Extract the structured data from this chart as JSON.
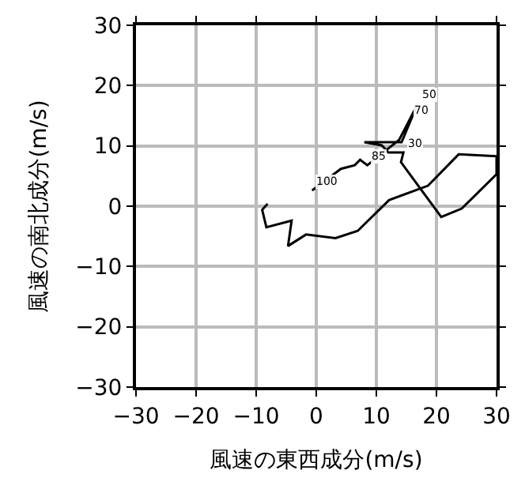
{
  "chart_data": {
    "type": "line",
    "xlabel": "風速の東西成分(m/s)",
    "ylabel": "風速の南北成分(m/s)",
    "xlim": [
      -30,
      30
    ],
    "ylim": [
      -30,
      30
    ],
    "xticks": [
      -30,
      -20,
      -10,
      0,
      10,
      20,
      30
    ],
    "yticks": [
      -30,
      -20,
      -10,
      0,
      10,
      20,
      30
    ],
    "grid": true,
    "legend": false,
    "marker": "none",
    "line_style": "solid",
    "series": [
      {
        "color": "#000000",
        "x": [
          -8.1,
          -9,
          -8.3,
          -4.1,
          -4.7,
          -1.7,
          3.2,
          6.9,
          12.1,
          18.6,
          23.7,
          30,
          30,
          24.2,
          20.8,
          14.1,
          14.5,
          12,
          10.9,
          8,
          14.2,
          16.8,
          13.8,
          8.5,
          7.3,
          6.4,
          4.1,
          -0.7
        ],
        "values": [
          0.4,
          -0.6,
          -3.5,
          -2.4,
          -6.6,
          -4.7,
          -5.3,
          -4.1,
          1.0,
          3.4,
          8.6,
          8.3,
          5.3,
          -0.4,
          -1.8,
          7.3,
          8.9,
          8.9,
          10.1,
          10.6,
          10.6,
          16.8,
          11,
          6.8,
          7.7,
          6.8,
          6.2,
          2.6
        ]
      }
    ],
    "annotations": [
      {
        "text": "100",
        "x": -0.7,
        "y": 2.6
      },
      {
        "text": "85",
        "x": 8.5,
        "y": 6.8
      },
      {
        "text": "30",
        "x": 14.5,
        "y": 8.9
      },
      {
        "text": "50",
        "x": 16.8,
        "y": 16.8
      },
      {
        "text": "70",
        "x": 15.4,
        "y": 14.2
      }
    ]
  }
}
